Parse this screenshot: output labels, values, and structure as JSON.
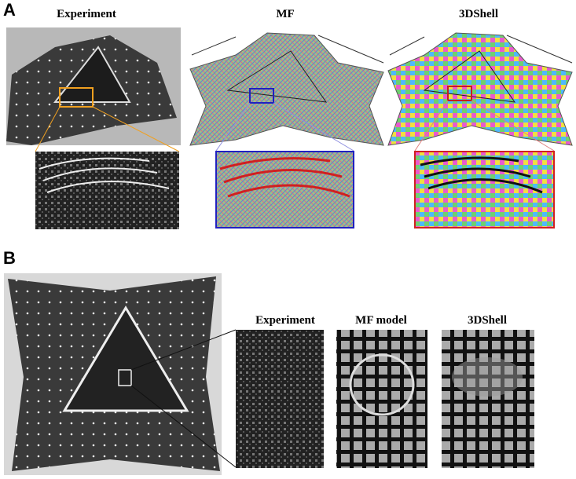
{
  "panel_a": {
    "label": "A",
    "titles": [
      "Experiment",
      "MF",
      "3DShell"
    ]
  },
  "panel_b": {
    "label": "B",
    "titles": [
      "Experiment",
      "MF model",
      "3DShell"
    ]
  }
}
